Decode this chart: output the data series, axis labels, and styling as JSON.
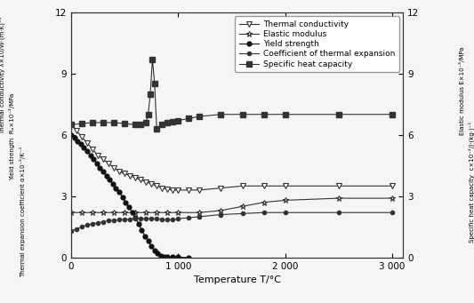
{
  "xlabel": "Temperature T/°C",
  "xlim": [
    0,
    3100
  ],
  "ylim": [
    0,
    12
  ],
  "xticks": [
    0,
    1000,
    2000,
    3000
  ],
  "xtick_labels": [
    "0",
    "1 000",
    "2 000",
    "3 000"
  ],
  "yticks": [
    0,
    3,
    6,
    9,
    12
  ],
  "background_color": "#f0f0f0",
  "plot_bg": "#f0f0f0",
  "thermal_conductivity": {
    "x": [
      0,
      50,
      100,
      150,
      200,
      250,
      300,
      350,
      400,
      450,
      500,
      550,
      600,
      650,
      700,
      750,
      800,
      850,
      900,
      950,
      1000,
      1100,
      1200,
      1400,
      1600,
      1800,
      2000,
      2500,
      3000
    ],
    "y": [
      6.5,
      6.2,
      5.9,
      5.6,
      5.3,
      5.0,
      4.8,
      4.6,
      4.4,
      4.2,
      4.1,
      4.0,
      3.9,
      3.8,
      3.7,
      3.6,
      3.5,
      3.4,
      3.35,
      3.3,
      3.3,
      3.3,
      3.3,
      3.4,
      3.5,
      3.5,
      3.5,
      3.5,
      3.5
    ],
    "color": "#333333",
    "marker": "v",
    "markersize": 4,
    "label": "Thermal conductivity"
  },
  "elastic_modulus": {
    "x": [
      0,
      100,
      200,
      300,
      400,
      500,
      600,
      700,
      800,
      900,
      1000,
      1200,
      1400,
      1600,
      1800,
      2000,
      2500,
      3000
    ],
    "y": [
      2.2,
      2.2,
      2.2,
      2.2,
      2.2,
      2.2,
      2.2,
      2.2,
      2.2,
      2.2,
      2.2,
      2.2,
      2.3,
      2.5,
      2.7,
      2.8,
      2.9,
      2.9
    ],
    "color": "#333333",
    "marker": "*",
    "markersize": 5,
    "label": "Elastic modulus"
  },
  "yield_strength": {
    "x": [
      0,
      30,
      60,
      90,
      120,
      150,
      180,
      210,
      240,
      270,
      300,
      330,
      360,
      390,
      420,
      450,
      480,
      510,
      540,
      570,
      600,
      630,
      660,
      690,
      720,
      750,
      780,
      810,
      840,
      870,
      900,
      950,
      1000,
      1100
    ],
    "y": [
      6.0,
      5.85,
      5.7,
      5.55,
      5.4,
      5.2,
      5.0,
      4.8,
      4.6,
      4.4,
      4.2,
      4.0,
      3.8,
      3.6,
      3.4,
      3.2,
      2.95,
      2.7,
      2.45,
      2.2,
      1.95,
      1.65,
      1.35,
      1.05,
      0.8,
      0.55,
      0.35,
      0.2,
      0.1,
      0.05,
      0.02,
      0.02,
      0.02,
      0.0
    ],
    "color": "#111111",
    "marker": "o",
    "markersize": 3.5,
    "label": "Yield strength"
  },
  "thermal_expansion": {
    "x": [
      0,
      50,
      100,
      150,
      200,
      250,
      300,
      350,
      400,
      450,
      500,
      550,
      600,
      650,
      700,
      750,
      800,
      850,
      900,
      950,
      1000,
      1100,
      1200,
      1400,
      1600,
      1800,
      2000,
      2500,
      3000
    ],
    "y": [
      1.3,
      1.4,
      1.5,
      1.6,
      1.65,
      1.7,
      1.75,
      1.8,
      1.82,
      1.85,
      1.87,
      1.88,
      1.9,
      1.9,
      1.9,
      1.9,
      1.9,
      1.85,
      1.85,
      1.85,
      1.9,
      1.95,
      2.0,
      2.1,
      2.15,
      2.2,
      2.2,
      2.2,
      2.2
    ],
    "color": "#333333",
    "marker": "o",
    "markersize": 3,
    "label": "Coefficient of thermal expansion"
  },
  "specific_heat": {
    "x": [
      0,
      100,
      200,
      300,
      400,
      500,
      600,
      650,
      700,
      720,
      740,
      760,
      780,
      800,
      850,
      900,
      950,
      1000,
      1100,
      1200,
      1400,
      1600,
      1800,
      2000,
      2500,
      3000
    ],
    "y": [
      6.5,
      6.55,
      6.6,
      6.6,
      6.6,
      6.55,
      6.5,
      6.5,
      6.6,
      7.0,
      8.0,
      9.7,
      8.5,
      6.3,
      6.5,
      6.6,
      6.65,
      6.7,
      6.8,
      6.9,
      7.0,
      7.0,
      7.0,
      7.0,
      7.0,
      7.0
    ],
    "color": "#333333",
    "marker": "s",
    "markersize": 4,
    "label": "Specific heat capacity"
  },
  "ylabel_left": [
    "Thermal conductivity λ×10/W·(m·K)⁻¹",
    "Yield strength  Rₐ×10⁻²/MPa",
    "Thermal expansion coefficient α×10⁻⁵/K⁻¹"
  ],
  "ylabel_right": [
    "Elastic modulus E×10⁻⁵/MPa",
    "Specific heat capacity  c×10⁻²/J·(kg·)⁻¹"
  ]
}
